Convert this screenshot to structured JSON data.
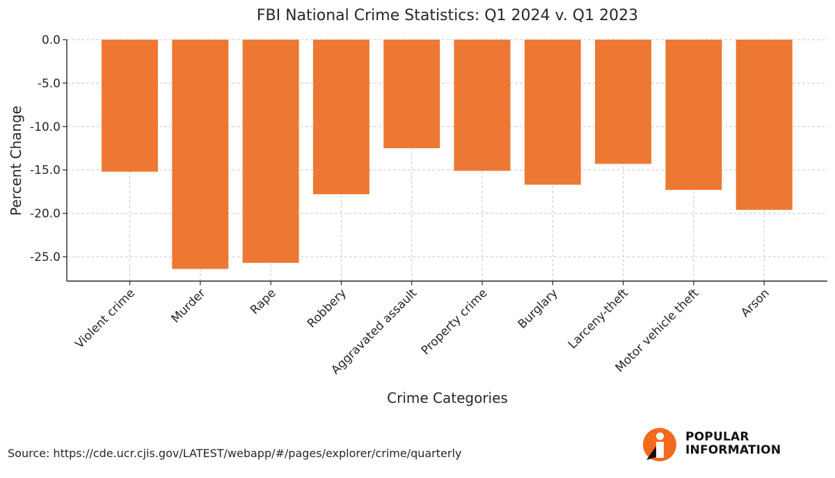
{
  "chart_data": {
    "type": "bar",
    "title": "FBI National Crime Statistics: Q1 2024 v. Q1 2023",
    "xlabel": "Crime Categories",
    "ylabel": "Percent Change",
    "categories": [
      "Violent crime",
      "Murder",
      "Rape",
      "Robbery",
      "Aggravated assault",
      "Property crime",
      "Burglary",
      "Larceny-theft",
      "Motor vehicle theft",
      "Arson"
    ],
    "values": [
      -15.2,
      -26.4,
      -25.7,
      -17.8,
      -12.5,
      -15.1,
      -16.7,
      -14.3,
      -17.3,
      -19.6
    ],
    "yticks": [
      "0.0",
      "-5.0",
      "-10.0",
      "-15.0",
      "-20.0",
      "-25.0"
    ],
    "ylim": [
      -27.8,
      0
    ],
    "grid": true,
    "bar_color": "#ed7833"
  },
  "footer": {
    "source": "Source: https://cde.ucr.cjis.gov/LATEST/webapp/#/pages/explorer/crime/quarterly"
  },
  "logo": {
    "line1": "POPULAR",
    "line2": "INFORMATION",
    "accent_color": "#f26a1b"
  }
}
